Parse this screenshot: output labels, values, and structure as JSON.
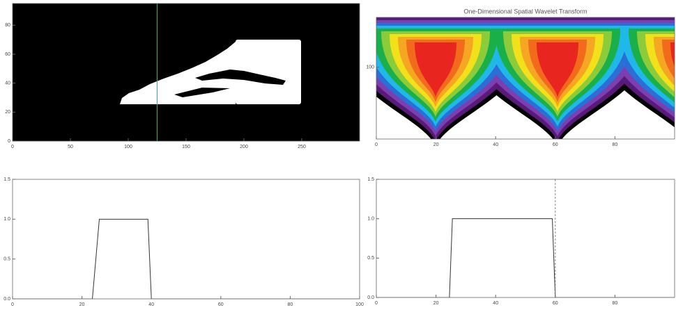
{
  "chart_data": [
    {
      "type": "image",
      "color": "#000000",
      "marker_x": 125,
      "marker_color": "#2fae8a",
      "xlim": [
        0,
        300
      ],
      "xticks": [
        0,
        50,
        100,
        150,
        200,
        250
      ],
      "ylim": [
        0,
        95
      ],
      "yticks": [
        0,
        20,
        40,
        60,
        80
      ]
    },
    {
      "type": "heatmap",
      "title": "One-Dimensional Spatial Wavelet Transform",
      "xlim": [
        0,
        100
      ],
      "xticks": [
        0,
        20,
        40,
        60,
        80
      ],
      "ylim": [
        5,
        800
      ],
      "ylog": true,
      "yticks": [
        100
      ]
    },
    {
      "type": "line",
      "color": "#333333",
      "xlim": [
        0,
        100
      ],
      "xticks": [
        0,
        20,
        40,
        60,
        80,
        100
      ],
      "ylim": [
        0,
        1.5
      ],
      "yticks": [
        {
          "value": 0,
          "label": "0.0"
        },
        0.5,
        {
          "value": 1,
          "label": "1.0"
        },
        1.5
      ],
      "x": [
        0,
        23,
        25,
        39,
        40,
        100
      ],
      "values": [
        0,
        0,
        1,
        1,
        0,
        0
      ]
    },
    {
      "type": "line",
      "color": "#333333",
      "marker_x": 60,
      "marker_color": "#888888",
      "xlim": [
        0,
        100
      ],
      "xticks": [
        0,
        20,
        40,
        60,
        80
      ],
      "ylim": [
        0,
        1.5
      ],
      "yticks": [
        {
          "value": 0,
          "label": "0.0"
        },
        0.5,
        {
          "value": 1,
          "label": "1.0"
        },
        1.5
      ],
      "x": [
        0,
        24.5,
        25.5,
        59,
        60,
        100
      ],
      "values": [
        0,
        0,
        1,
        1,
        0,
        0
      ]
    }
  ]
}
